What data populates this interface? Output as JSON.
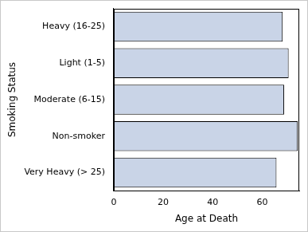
{
  "chart_data": {
    "type": "bar",
    "orientation": "horizontal",
    "categories": [
      "Heavy (16-25)",
      "Light (1-5)",
      "Moderate (6-15)",
      "Non-smoker",
      "Very Heavy (> 25)"
    ],
    "values": [
      68.3,
      70.7,
      68.9,
      74.4,
      65.8
    ],
    "color": "#c9d4e7",
    "xlabel": "Age at Death",
    "ylabel": "Smoking Status",
    "xlim": [
      0,
      75
    ],
    "xticks": [
      0,
      20,
      40,
      60
    ],
    "grid": false
  }
}
